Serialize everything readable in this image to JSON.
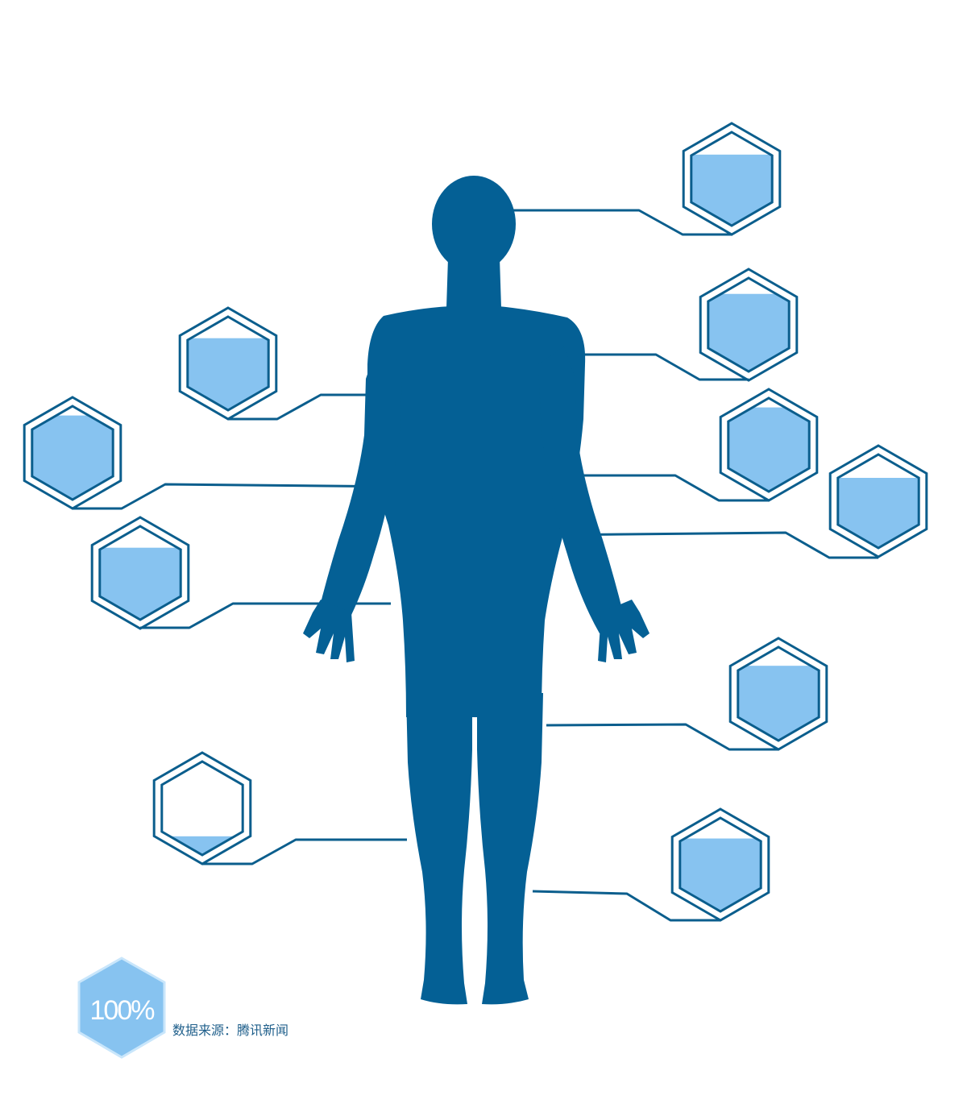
{
  "colors": {
    "body": "#046095",
    "line": "#0b5e8d",
    "fill": "#87c3f0",
    "legend_stroke": "#c9e6fb",
    "legend_fill": "#87c3f0",
    "legend_text": "#1f5f8b"
  },
  "legend": {
    "value_label": "100%",
    "source": "数据来源：腾讯新闻"
  },
  "hexagons": [
    {
      "side": "right",
      "fill_level": 0.76
    },
    {
      "side": "right",
      "fill_level": 0.83
    },
    {
      "side": "right",
      "fill_level": 0.9
    },
    {
      "side": "right",
      "fill_level": 0.75
    },
    {
      "side": "right",
      "fill_level": 0.8
    },
    {
      "side": "right",
      "fill_level": 0.78
    },
    {
      "side": "left",
      "fill_level": 0.9
    },
    {
      "side": "left",
      "fill_level": 0.77
    },
    {
      "side": "left",
      "fill_level": 0.77
    },
    {
      "side": "left",
      "fill_level": 0.2
    }
  ]
}
